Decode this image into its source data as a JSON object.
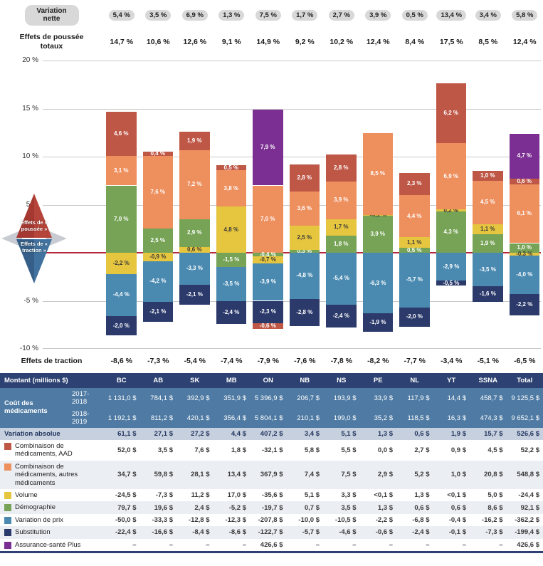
{
  "colors": {
    "red": "#bf5747",
    "orange": "#ee8f5e",
    "yellow": "#e6c53f",
    "green": "#76a356",
    "blue": "#4a8ab1",
    "navy": "#2b3a6b",
    "purple": "#7c2f92",
    "pill_bg": "#d8d8d8",
    "zero_line": "#b5273a",
    "table_header_bg": "#2d4272",
    "cost_row_bg": "#4e7aa3",
    "variation_row_bg": "#c7d0de"
  },
  "labels": {
    "variation_nette": "Variation nette",
    "poussee_totaux": "Effets de poussée totaux",
    "traction": "Effets de traction",
    "compass_poussee": "Effets de « poussée »",
    "compass_traction": "Effets de « traction »"
  },
  "chart_data": {
    "type": "stacked-bar",
    "unit": "%",
    "ylim": [
      -10,
      20
    ],
    "yticks": [
      "20 %",
      "15 %",
      "10 %",
      "5 %",
      "0 %",
      "-5 %",
      "-10 %"
    ],
    "grid": true,
    "categories": [
      "BC",
      "AB",
      "SK",
      "MB",
      "ON",
      "NB",
      "NS",
      "PE",
      "NL",
      "YT",
      "SSNA",
      "Total"
    ],
    "net_variation": [
      "5,4 %",
      "3,5 %",
      "6,9 %",
      "1,3 %",
      "7,5 %",
      "1,7 %",
      "2,7 %",
      "3,9 %",
      "0,5 %",
      "13,4 %",
      "3,4 %",
      "5,8 %"
    ],
    "total_push": [
      "14,7 %",
      "10,6 %",
      "12,6 %",
      "9,1 %",
      "14,9 %",
      "9,2 %",
      "10,2 %",
      "12,4 %",
      "8,4 %",
      "17,5 %",
      "8,5 %",
      "12,4 %"
    ],
    "total_traction": [
      "-8,6 %",
      "-7,3 %",
      "-5,4 %",
      "-7,4 %",
      "-7,9 %",
      "-7,6 %",
      "-7,8 %",
      "-8,2 %",
      "-7,7 %",
      "-3,4 %",
      "-5,1 %",
      "-6,5 %"
    ],
    "series_legend": [
      {
        "name": "Combinaison de médicaments, AAD",
        "color": "red"
      },
      {
        "name": "Combinaison de médicaments, autres médicaments",
        "color": "orange"
      },
      {
        "name": "Volume",
        "color": "yellow"
      },
      {
        "name": "Démographie",
        "color": "green"
      },
      {
        "name": "Variation de prix",
        "color": "blue"
      },
      {
        "name": "Substitution",
        "color": "navy"
      },
      {
        "name": "Assurance-santé Plus",
        "color": "purple"
      }
    ],
    "bars": [
      {
        "name": "BC",
        "pos": [
          {
            "c": "green",
            "v": 7.0,
            "label": "7,0 %"
          },
          {
            "c": "orange",
            "v": 3.1,
            "label": "3,1 %"
          },
          {
            "c": "red",
            "v": 4.6,
            "label": "4,6 %"
          }
        ],
        "neg": [
          {
            "c": "yellow",
            "v": 2.2,
            "label": "-2,2 %"
          },
          {
            "c": "blue",
            "v": 4.4,
            "label": "-4,4 %"
          },
          {
            "c": "navy",
            "v": 2.0,
            "label": "-2,0 %"
          }
        ]
      },
      {
        "name": "AB",
        "pos": [
          {
            "c": "green",
            "v": 2.5,
            "label": "2,5 %"
          },
          {
            "c": "orange",
            "v": 7.6,
            "label": "7,6 %"
          },
          {
            "c": "red",
            "v": 0.4,
            "label": "0,4 %"
          }
        ],
        "neg": [
          {
            "c": "yellow",
            "v": 0.9,
            "label": "-0,9 %"
          },
          {
            "c": "blue",
            "v": 4.2,
            "label": "-4,2 %"
          },
          {
            "c": "navy",
            "v": 2.1,
            "label": "-2,1 %"
          }
        ]
      },
      {
        "name": "SK",
        "pos": [
          {
            "c": "yellow",
            "v": 0.6,
            "label": "0,6 %"
          },
          {
            "c": "green",
            "v": 2.9,
            "label": "2,9 %"
          },
          {
            "c": "orange",
            "v": 7.2,
            "label": "7,2 %"
          },
          {
            "c": "red",
            "v": 1.9,
            "label": "1,9 %"
          }
        ],
        "neg": [
          {
            "c": "blue",
            "v": 3.3,
            "label": "-3,3 %"
          },
          {
            "c": "navy",
            "v": 2.1,
            "label": "-2,1 %"
          }
        ]
      },
      {
        "name": "MB",
        "pos": [
          {
            "c": "yellow",
            "v": 4.8,
            "label": "4,8 %"
          },
          {
            "c": "orange",
            "v": 3.8,
            "label": "3,8 %"
          },
          {
            "c": "red",
            "v": 0.5,
            "label": "0,5 %"
          }
        ],
        "neg": [
          {
            "c": "green",
            "v": 1.5,
            "label": "-1,5 %"
          },
          {
            "c": "blue",
            "v": 3.5,
            "label": "-3,5 %"
          },
          {
            "c": "navy",
            "v": 2.4,
            "label": "-2,4 %"
          }
        ]
      },
      {
        "name": "ON",
        "pos": [
          {
            "c": "orange",
            "v": 7.0,
            "label": "7,0 %"
          },
          {
            "c": "purple",
            "v": 7.9,
            "label": "7,9 %"
          }
        ],
        "neg": [
          {
            "c": "green",
            "v": 0.4,
            "label": "-0,4 %"
          },
          {
            "c": "yellow",
            "v": 0.7,
            "label": "-0,7 %"
          },
          {
            "c": "blue",
            "v": 3.9,
            "label": "-3,9 %"
          },
          {
            "c": "navy",
            "v": 2.3,
            "label": "-2,3 %"
          },
          {
            "c": "red",
            "v": 0.6,
            "label": "-0,6 %"
          }
        ]
      },
      {
        "name": "NB",
        "pos": [
          {
            "c": "green",
            "v": 0.3,
            "label": "0,3 %"
          },
          {
            "c": "yellow",
            "v": 2.5,
            "label": "2,5 %"
          },
          {
            "c": "orange",
            "v": 3.6,
            "label": "3,6 %"
          },
          {
            "c": "red",
            "v": 2.8,
            "label": "2,8 %"
          }
        ],
        "neg": [
          {
            "c": "blue",
            "v": 4.8,
            "label": "-4,8 %"
          },
          {
            "c": "navy",
            "v": 2.8,
            "label": "-2,8 %"
          }
        ]
      },
      {
        "name": "NS",
        "pos": [
          {
            "c": "green",
            "v": 1.8,
            "label": "1,8 %"
          },
          {
            "c": "yellow",
            "v": 1.7,
            "label": "1,7 %"
          },
          {
            "c": "orange",
            "v": 3.9,
            "label": "3,9 %"
          },
          {
            "c": "red",
            "v": 2.8,
            "label": "2,8 %"
          }
        ],
        "neg": [
          {
            "c": "blue",
            "v": 5.4,
            "label": "-5,4 %"
          },
          {
            "c": "navy",
            "v": 2.4,
            "label": "-2,4 %"
          }
        ]
      },
      {
        "name": "PE",
        "pos": [
          {
            "c": "green",
            "v": 3.9,
            "label": "3,9 %"
          },
          {
            "c": "yellow",
            "v": 0.05,
            "label": "<0,1 %"
          },
          {
            "c": "orange",
            "v": 8.5,
            "label": "8,5 %"
          }
        ],
        "neg": [
          {
            "c": "blue",
            "v": 6.3,
            "label": "-6,3 %"
          },
          {
            "c": "navy",
            "v": 1.9,
            "label": "-1,9 %"
          }
        ]
      },
      {
        "name": "NL",
        "pos": [
          {
            "c": "green",
            "v": 0.5,
            "label": "0,5 %"
          },
          {
            "c": "yellow",
            "v": 1.1,
            "label": "1,1 %"
          },
          {
            "c": "orange",
            "v": 4.4,
            "label": "4,4 %"
          },
          {
            "c": "red",
            "v": 2.3,
            "label": "2,3 %"
          }
        ],
        "neg": [
          {
            "c": "blue",
            "v": 5.7,
            "label": "-5,7 %"
          },
          {
            "c": "navy",
            "v": 2.0,
            "label": "-2,0 %"
          }
        ]
      },
      {
        "name": "YT",
        "pos": [
          {
            "c": "green",
            "v": 4.3,
            "label": "4,3 %"
          },
          {
            "c": "yellow",
            "v": 0.2,
            "label": "0,2 %"
          },
          {
            "c": "orange",
            "v": 6.9,
            "label": "6,9 %"
          },
          {
            "c": "red",
            "v": 6.2,
            "label": "6,2 %"
          }
        ],
        "neg": [
          {
            "c": "blue",
            "v": 2.9,
            "label": "-2,9 %"
          },
          {
            "c": "navy",
            "v": 0.5,
            "label": "-0,5 %"
          }
        ]
      },
      {
        "name": "SSNA",
        "pos": [
          {
            "c": "green",
            "v": 1.9,
            "label": "1,9 %"
          },
          {
            "c": "yellow",
            "v": 1.1,
            "label": "1,1 %"
          },
          {
            "c": "orange",
            "v": 4.5,
            "label": "4,5 %"
          },
          {
            "c": "red",
            "v": 1.0,
            "label": "1,0 %"
          }
        ],
        "neg": [
          {
            "c": "blue",
            "v": 3.5,
            "label": "-3,5 %"
          },
          {
            "c": "navy",
            "v": 1.6,
            "label": "-1,6 %"
          }
        ]
      },
      {
        "name": "Total",
        "pos": [
          {
            "c": "green",
            "v": 1.0,
            "label": "1,0 %"
          },
          {
            "c": "orange",
            "v": 6.1,
            "label": "6,1 %"
          },
          {
            "c": "red",
            "v": 0.6,
            "label": "0,6 %"
          },
          {
            "c": "purple",
            "v": 4.7,
            "label": "4,7 %"
          }
        ],
        "neg": [
          {
            "c": "yellow",
            "v": 0.3,
            "label": "-0,3 %"
          },
          {
            "c": "blue",
            "v": 4.0,
            "label": "-4,0 %"
          },
          {
            "c": "navy",
            "v": 2.2,
            "label": "-2,2 %"
          }
        ]
      }
    ]
  },
  "table": {
    "header_first": "Montant (millions $)",
    "columns": [
      "BC",
      "AB",
      "SK",
      "MB",
      "ON",
      "NB",
      "NS",
      "PE",
      "NL",
      "YT",
      "SSNA",
      "Total"
    ],
    "cost_group_label": "Coût des médicaments",
    "cost_rows": [
      {
        "year": "2017-2018",
        "values": [
          "1 131,0 $",
          "784,1 $",
          "392,9 $",
          "351,9 $",
          "5 396,9 $",
          "206,7 $",
          "193,9 $",
          "33,9 $",
          "117,9 $",
          "14,4 $",
          "458,7 $",
          "9 125,5 $"
        ]
      },
      {
        "year": "2018-2019",
        "values": [
          "1 192,1 $",
          "811,2 $",
          "420,1 $",
          "356,4 $",
          "5 804,1 $",
          "210,1 $",
          "199,0 $",
          "35,2 $",
          "118,5 $",
          "16,3 $",
          "474,3 $",
          "9 652,1 $"
        ]
      }
    ],
    "variation_row": {
      "label": "Variation absolue",
      "values": [
        "61,1 $",
        "27,1 $",
        "27,2 $",
        "4,4 $",
        "407,2 $",
        "3,4 $",
        "5,1 $",
        "1,3 $",
        "0,6 $",
        "1,9 $",
        "15,7 $",
        "526,6 $"
      ]
    },
    "legend_rows": [
      {
        "label": "Combinaison de médicaments, AAD",
        "color": "red",
        "values": [
          "52,0 $",
          "3,5 $",
          "7,6 $",
          "1,8 $",
          "-32,1 $",
          "5,8 $",
          "5,5 $",
          "0,0 $",
          "2,7 $",
          "0,9 $",
          "4,5 $",
          "52,2 $"
        ]
      },
      {
        "label": "Combinaison de médicaments, autres médicaments",
        "color": "orange",
        "values": [
          "34,7 $",
          "59,8 $",
          "28,1 $",
          "13,4 $",
          "367,9 $",
          "7,4 $",
          "7,5 $",
          "2,9 $",
          "5,2 $",
          "1,0 $",
          "20,8 $",
          "548,8 $"
        ]
      },
      {
        "label": "Volume",
        "color": "yellow",
        "values": [
          "-24,5 $",
          "-7,3 $",
          "11,2 $",
          "17,0 $",
          "-35,6 $",
          "5,1 $",
          "3,3 $",
          "<0,1 $",
          "1,3 $",
          "<0,1 $",
          "5,0 $",
          "-24,4 $"
        ]
      },
      {
        "label": "Démographie",
        "color": "green",
        "values": [
          "79,7 $",
          "19,6 $",
          "2,4 $",
          "-5,2 $",
          "-19,7 $",
          "0,7 $",
          "3,5 $",
          "1,3 $",
          "0,6 $",
          "0,6 $",
          "8,6 $",
          "92,1 $"
        ]
      },
      {
        "label": "Variation de prix",
        "color": "blue",
        "values": [
          "-50,0 $",
          "-33,3 $",
          "-12,8 $",
          "-12,3 $",
          "-207,8 $",
          "-10,0 $",
          "-10,5 $",
          "-2,2 $",
          "-6,8 $",
          "-0,4 $",
          "-16,2 $",
          "-362,2 $"
        ]
      },
      {
        "label": "Substitution",
        "color": "navy",
        "values": [
          "-22,4 $",
          "-16,6 $",
          "-8,4 $",
          "-8,6 $",
          "-122,7 $",
          "-5,7 $",
          "-4,6 $",
          "-0,6 $",
          "-2,4 $",
          "-0,1 $",
          "-7,3 $",
          "-199,4 $"
        ]
      },
      {
        "label": "Assurance-santé Plus",
        "color": "purple",
        "values": [
          "–",
          "–",
          "–",
          "–",
          "426,6 $",
          "–",
          "–",
          "–",
          "–",
          "–",
          "–",
          "426,6 $"
        ]
      }
    ]
  }
}
